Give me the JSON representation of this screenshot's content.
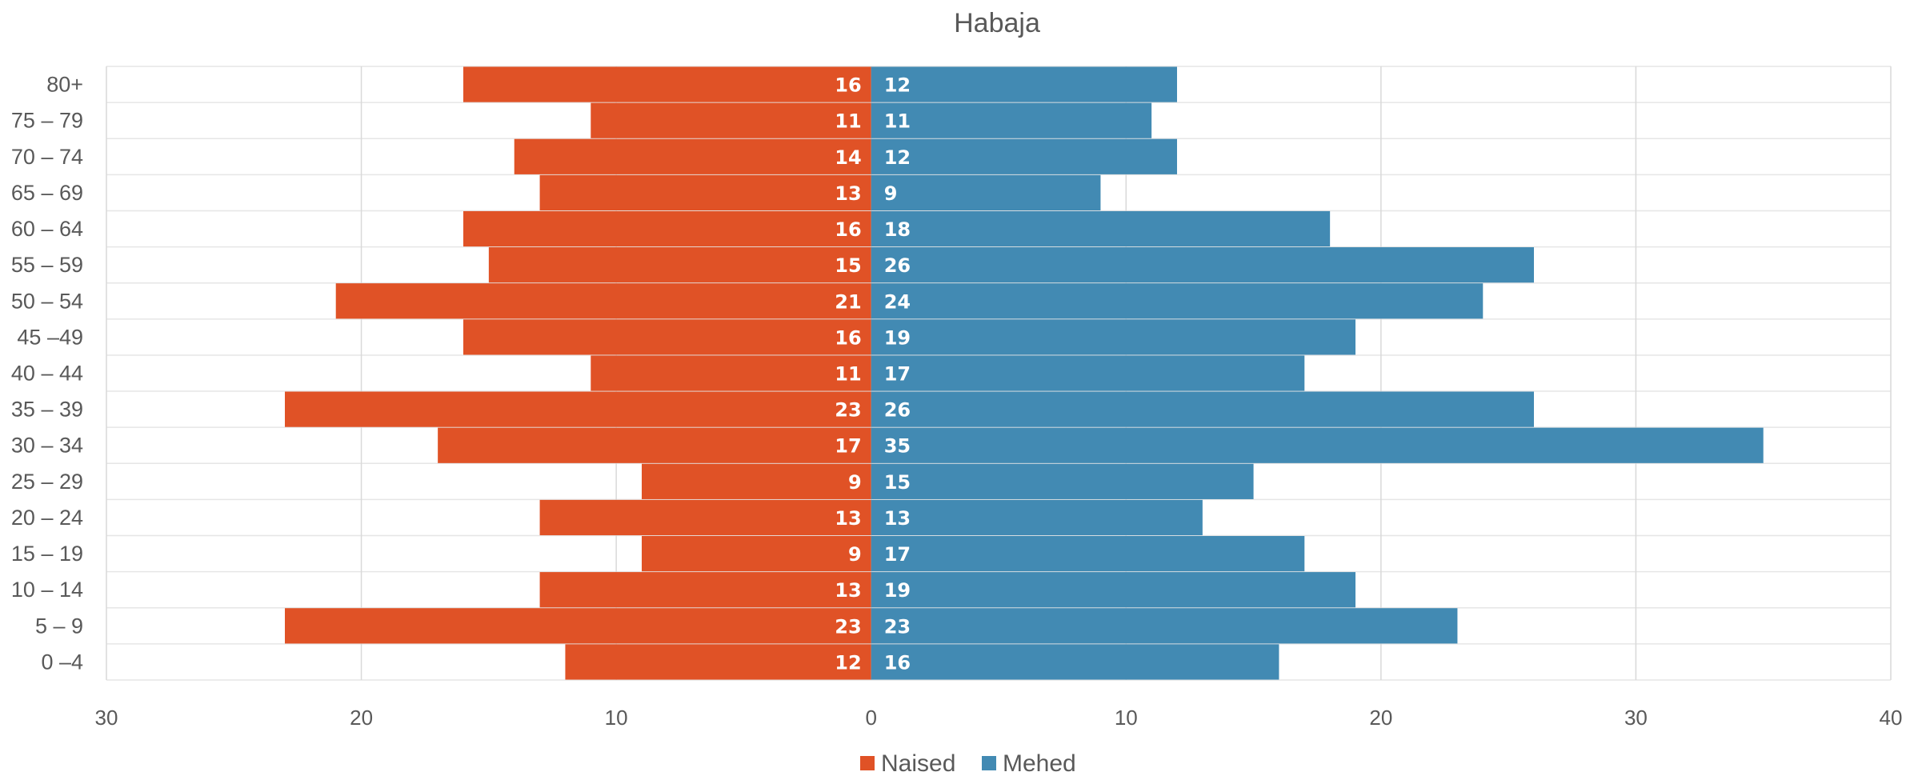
{
  "chart_data": {
    "type": "bar",
    "orientation": "horizontal",
    "layout": "population-pyramid",
    "title": "Habaja",
    "categories": [
      "80+",
      "75 – 79",
      "70 – 74",
      "65 – 69",
      "60 – 64",
      "55 – 59",
      "50 – 54",
      "45 –49",
      "40 – 44",
      "35 – 39",
      "30 – 34",
      "25 – 29",
      "20 – 24",
      "15 – 19",
      "10 – 14",
      "5 – 9",
      "0 –4"
    ],
    "series": [
      {
        "name": "Naised",
        "color": "#e05226",
        "side": "left",
        "values": [
          16,
          11,
          14,
          13,
          16,
          15,
          21,
          16,
          11,
          23,
          17,
          9,
          13,
          9,
          13,
          23,
          12
        ]
      },
      {
        "name": "Mehed",
        "color": "#428ab3",
        "side": "right",
        "values": [
          12,
          11,
          12,
          9,
          18,
          26,
          24,
          19,
          17,
          26,
          35,
          15,
          13,
          17,
          19,
          23,
          16
        ]
      }
    ],
    "xlim": [
      -30,
      40
    ],
    "x_ticks": [
      {
        "value": -30,
        "label": "30"
      },
      {
        "value": -20,
        "label": "20"
      },
      {
        "value": -10,
        "label": "10"
      },
      {
        "value": 0,
        "label": "0"
      },
      {
        "value": 10,
        "label": "10"
      },
      {
        "value": 20,
        "label": "20"
      },
      {
        "value": 30,
        "label": "30"
      },
      {
        "value": 40,
        "label": "40"
      }
    ],
    "grid": true,
    "legend_position": "bottom",
    "data_labels": true
  }
}
